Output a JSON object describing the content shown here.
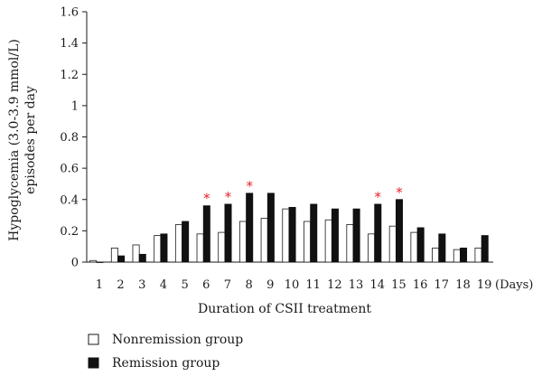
{
  "chart_data": {
    "type": "bar",
    "categories": [
      "1",
      "2",
      "3",
      "4",
      "5",
      "6",
      "7",
      "8",
      "9",
      "10",
      "11",
      "12",
      "13",
      "14",
      "15",
      "16",
      "17",
      "18",
      "19"
    ],
    "x_unit": "(Days)",
    "xlabel": "Duration of CSII treatment",
    "ylabel_line1": "Hypoglycemia (3.0-3.9 mmol/L)",
    "ylabel_line2": "episodes per day",
    "ylim": [
      0,
      1.6
    ],
    "yticks": [
      "0",
      "0.2",
      "0.4",
      "0.6",
      "0.8",
      "1",
      "1.2",
      "1.4",
      "1.6"
    ],
    "series": [
      {
        "name": "Nonremission group",
        "color": "#ffffff",
        "values": [
          0.01,
          0.09,
          0.11,
          0.17,
          0.24,
          0.18,
          0.19,
          0.26,
          0.28,
          0.34,
          0.26,
          0.27,
          0.24,
          0.18,
          0.23,
          0.19,
          0.09,
          0.08,
          0.09
        ]
      },
      {
        "name": "Remission group",
        "color": "#111111",
        "values": [
          0.0,
          0.04,
          0.05,
          0.18,
          0.26,
          0.36,
          0.37,
          0.44,
          0.44,
          0.35,
          0.37,
          0.34,
          0.34,
          0.37,
          0.4,
          0.22,
          0.18,
          0.09,
          0.17
        ]
      }
    ],
    "significance_marks": [
      "6",
      "7",
      "8",
      "14",
      "15"
    ],
    "significance_symbol": "*",
    "significance_color": "#e8202a",
    "legend_position": "bottom-left"
  }
}
